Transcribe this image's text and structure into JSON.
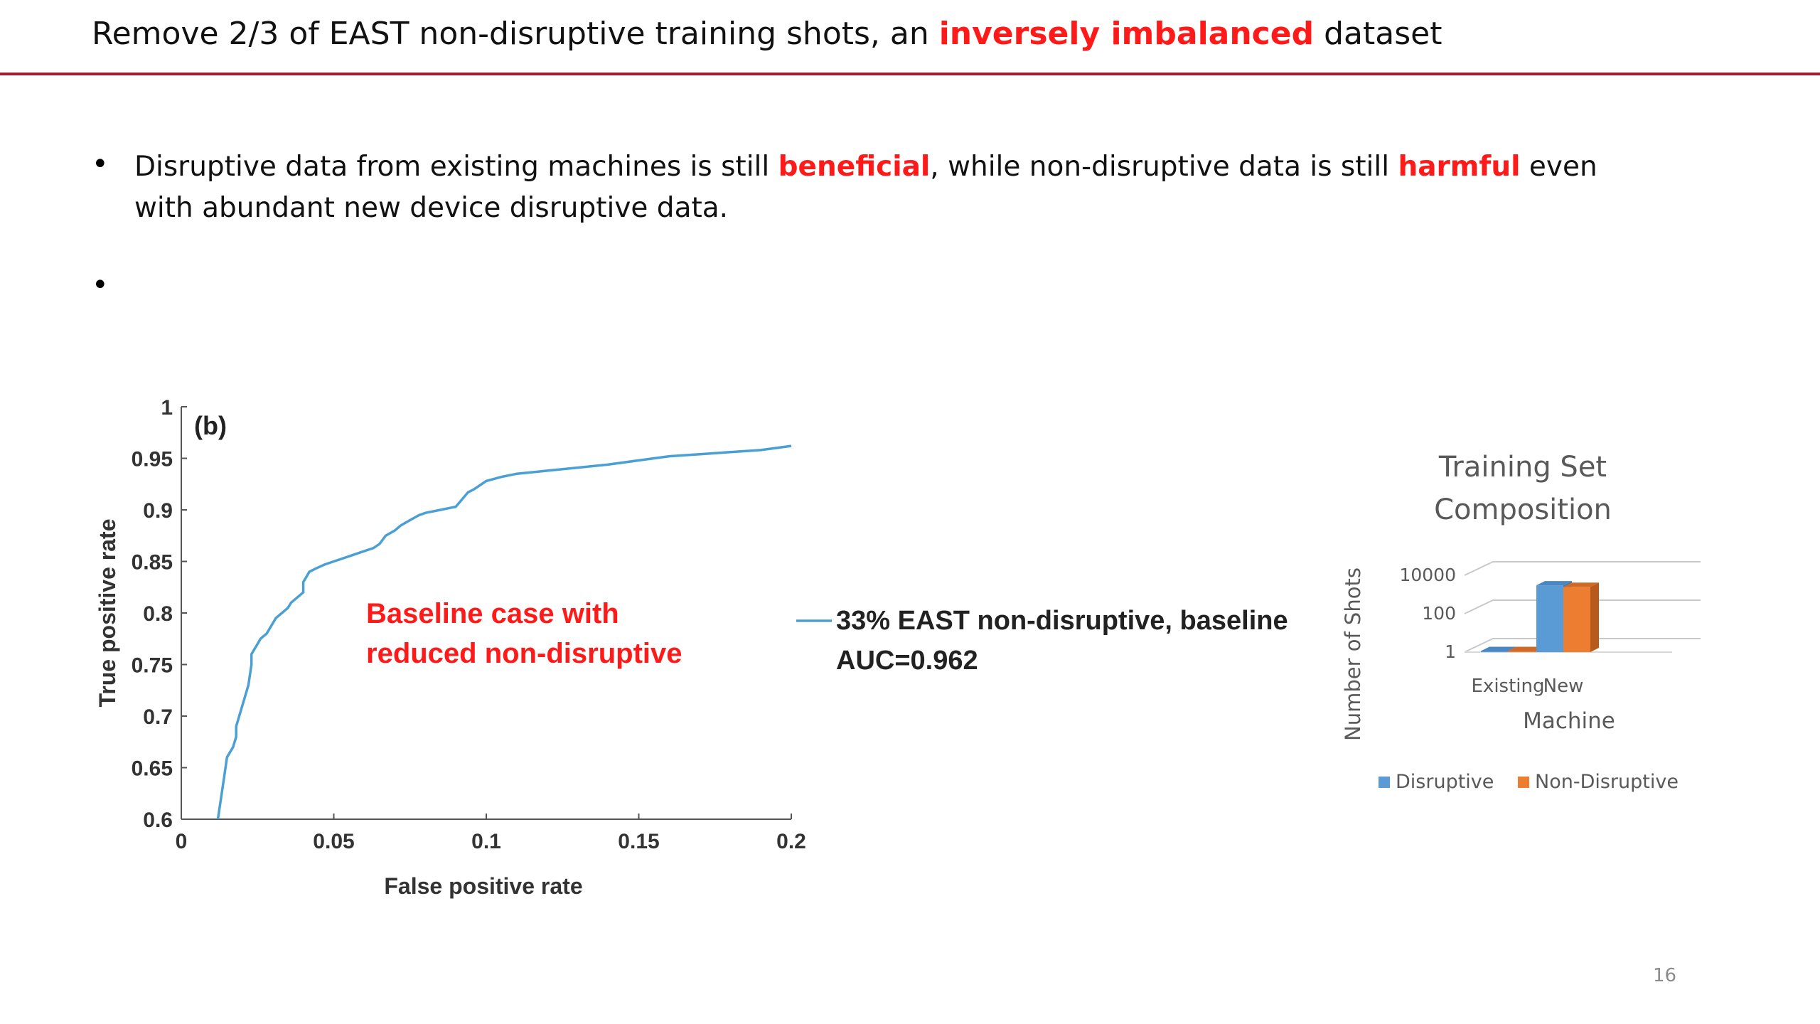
{
  "slide": {
    "title_parts": [
      "Remove 2/3 of EAST non-disruptive training shots, an ",
      "inversely imbalanced",
      " dataset"
    ],
    "bullet1_parts": [
      "Disruptive data from existing machines is still ",
      "beneficial",
      ", while non-disruptive data is still ",
      "harmful",
      " even with abundant new device disruptive data."
    ],
    "bullet_symbol": "•",
    "page_number": "16"
  },
  "colors": {
    "accent_red": "#ff1a1a",
    "rule": "#a51c30",
    "roc_line": "#4a9fd4",
    "disruptive": "#5b9bd5",
    "non_disruptive": "#ed7d31"
  },
  "chart_data": [
    {
      "type": "line",
      "panel_label": "(b)",
      "xlabel": "False positive rate",
      "ylabel": "True positive rate",
      "xlim": [
        0,
        0.2
      ],
      "ylim": [
        0.6,
        1
      ],
      "xticks": [
        "0",
        "0.05",
        "0.1",
        "0.15",
        "0.2"
      ],
      "yticks": [
        "0.6",
        "0.65",
        "0.7",
        "0.75",
        "0.8",
        "0.85",
        "0.9",
        "0.95",
        "1"
      ],
      "annotation": [
        "Baseline case with",
        "reduced non-disruptive"
      ],
      "series": [
        {
          "name": "33% EAST non-disruptive, baseline",
          "auc_label": "AUC=0.962",
          "x": [
            0.012,
            0.013,
            0.014,
            0.015,
            0.016,
            0.017,
            0.018,
            0.018,
            0.019,
            0.02,
            0.021,
            0.022,
            0.023,
            0.023,
            0.024,
            0.025,
            0.026,
            0.028,
            0.03,
            0.031,
            0.033,
            0.035,
            0.036,
            0.038,
            0.04,
            0.04,
            0.041,
            0.042,
            0.044,
            0.047,
            0.05,
            0.055,
            0.06,
            0.063,
            0.065,
            0.067,
            0.07,
            0.072,
            0.075,
            0.078,
            0.08,
            0.085,
            0.09,
            0.092,
            0.094,
            0.096,
            0.1,
            0.105,
            0.11,
            0.12,
            0.13,
            0.14,
            0.15,
            0.16,
            0.17,
            0.18,
            0.19,
            0.2
          ],
          "y": [
            0.6,
            0.62,
            0.64,
            0.66,
            0.665,
            0.67,
            0.68,
            0.69,
            0.7,
            0.71,
            0.72,
            0.73,
            0.75,
            0.76,
            0.765,
            0.77,
            0.775,
            0.78,
            0.79,
            0.795,
            0.8,
            0.805,
            0.81,
            0.815,
            0.82,
            0.83,
            0.835,
            0.84,
            0.843,
            0.847,
            0.85,
            0.855,
            0.86,
            0.863,
            0.867,
            0.875,
            0.88,
            0.885,
            0.89,
            0.895,
            0.897,
            0.9,
            0.903,
            0.91,
            0.917,
            0.92,
            0.928,
            0.932,
            0.935,
            0.938,
            0.941,
            0.944,
            0.948,
            0.952,
            0.954,
            0.956,
            0.958,
            0.962
          ]
        }
      ]
    },
    {
      "type": "bar",
      "title": [
        "Training Set",
        "Composition"
      ],
      "xlabel": "Machine",
      "ylabel": "Number of Shots",
      "yscale": "log",
      "yticks": [
        "1",
        "100",
        "10000"
      ],
      "categories": [
        "Existing",
        "New"
      ],
      "series": [
        {
          "name": "Disruptive",
          "values": [
            1,
            3000
          ]
        },
        {
          "name": "Non-Disruptive",
          "values": [
            1,
            2500
          ]
        }
      ],
      "legend": "bottom"
    }
  ]
}
